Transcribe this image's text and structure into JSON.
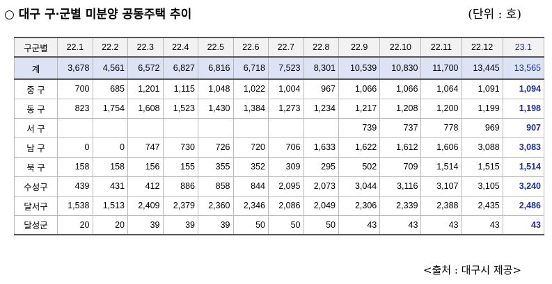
{
  "title": "○ 대구 구·군별 미분양 공동주택 추이",
  "unit": "(단위 : 호)",
  "source": "<출처 : 대구시 제공>",
  "table": {
    "corner": "구군별",
    "columns": [
      "22.1",
      "22.2",
      "22.3",
      "22.4",
      "22.5",
      "22.6",
      "22.7",
      "22.8",
      "22.9",
      "22.10",
      "22.11",
      "22.12",
      "23.1"
    ],
    "rows": [
      {
        "label": "계",
        "values": [
          "3,678",
          "4,561",
          "6,572",
          "6,827",
          "6,816",
          "6,718",
          "7,523",
          "8,301",
          "10,539",
          "10,830",
          "11,700",
          "13,445",
          "13,565"
        ]
      },
      {
        "label": "중 구",
        "values": [
          "700",
          "685",
          "1,201",
          "1,115",
          "1,048",
          "1,022",
          "1,004",
          "967",
          "1,066",
          "1,066",
          "1,064",
          "1,091",
          "1,094"
        ]
      },
      {
        "label": "동 구",
        "values": [
          "823",
          "1,754",
          "1,608",
          "1,523",
          "1,430",
          "1,384",
          "1,273",
          "1,234",
          "1,217",
          "1,208",
          "1,200",
          "1,199",
          "1,198"
        ]
      },
      {
        "label": "서 구",
        "values": [
          "",
          "",
          "",
          "",
          "",
          "",
          "",
          "",
          "739",
          "737",
          "778",
          "969",
          "907"
        ]
      },
      {
        "label": "남 구",
        "values": [
          "0",
          "0",
          "747",
          "730",
          "726",
          "720",
          "706",
          "1,633",
          "1,622",
          "1,612",
          "1,606",
          "3,088",
          "3,083"
        ]
      },
      {
        "label": "북 구",
        "values": [
          "158",
          "158",
          "156",
          "155",
          "355",
          "352",
          "309",
          "295",
          "502",
          "709",
          "1,514",
          "1,515",
          "1,514"
        ]
      },
      {
        "label": "수성구",
        "values": [
          "439",
          "431",
          "412",
          "886",
          "858",
          "844",
          "2,095",
          "2,073",
          "3,044",
          "3,116",
          "3,107",
          "3,105",
          "3,240"
        ]
      },
      {
        "label": "달서구",
        "values": [
          "1,538",
          "1,513",
          "2,409",
          "2,379",
          "2,360",
          "2,346",
          "2,086",
          "2,049",
          "2,306",
          "2,339",
          "2,388",
          "2,435",
          "2,486"
        ]
      },
      {
        "label": "달성군",
        "values": [
          "20",
          "20",
          "39",
          "39",
          "39",
          "50",
          "50",
          "50",
          "43",
          "43",
          "43",
          "43",
          "43"
        ]
      }
    ]
  }
}
